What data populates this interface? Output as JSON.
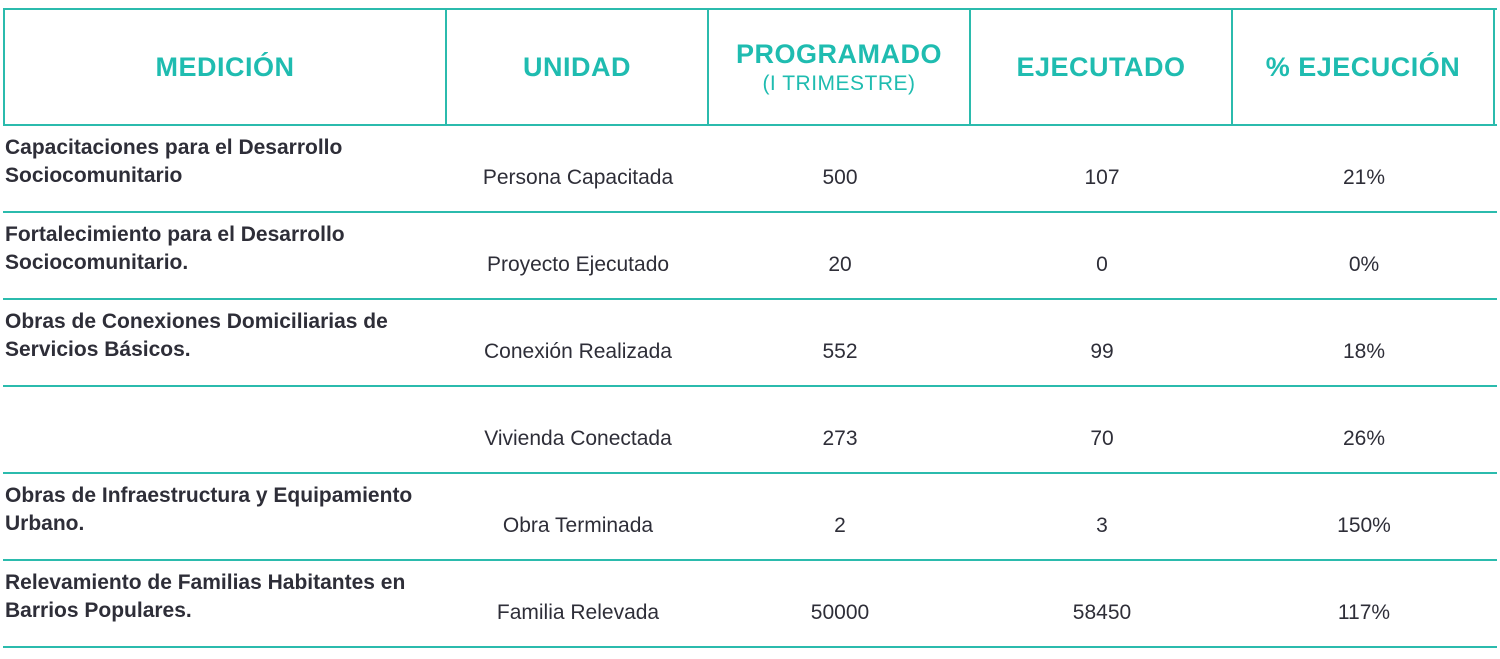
{
  "header": {
    "medicion": "MEDICIÓN",
    "unidad": "UNIDAD",
    "programado": "PROGRAMADO",
    "programado_sub": "(I TRIMESTRE)",
    "ejecutado": "EJECUTADO",
    "ejecucion": "% EJECUCIÓN"
  },
  "rows": [
    {
      "medicion": "Capacitaciones para el Desarrollo Sociocomunitario",
      "unidad": "Persona Capacitada",
      "programado": "500",
      "ejecutado": "107",
      "ejecucion": "21%"
    },
    {
      "medicion": "Fortalecimiento para el Desarrollo Sociocomunitario.",
      "unidad": "Proyecto Ejecutado",
      "programado": "20",
      "ejecutado": "0",
      "ejecucion": "0%"
    },
    {
      "medicion": "Obras de Conexiones Domiciliarias de Servicios Básicos.",
      "unidad": "Conexión Realizada",
      "programado": "552",
      "ejecutado": "99",
      "ejecucion": "18%"
    },
    {
      "medicion": "",
      "unidad": "Vivienda Conectada",
      "programado": "273",
      "ejecutado": "70",
      "ejecucion": "26%"
    },
    {
      "medicion": "Obras de Infraestructura y Equipamiento Urbano.",
      "unidad": "Obra Terminada",
      "programado": "2",
      "ejecutado": "3",
      "ejecucion": "150%"
    },
    {
      "medicion": "Relevamiento de Familias Habitantes en Barrios Populares.",
      "unidad": "Familia Relevada",
      "programado": "50000",
      "ejecutado": "58450",
      "ejecucion": "117%"
    }
  ],
  "colors": {
    "accent": "#1fbcb0",
    "border": "#2bbbad",
    "text": "#2e2e38"
  }
}
